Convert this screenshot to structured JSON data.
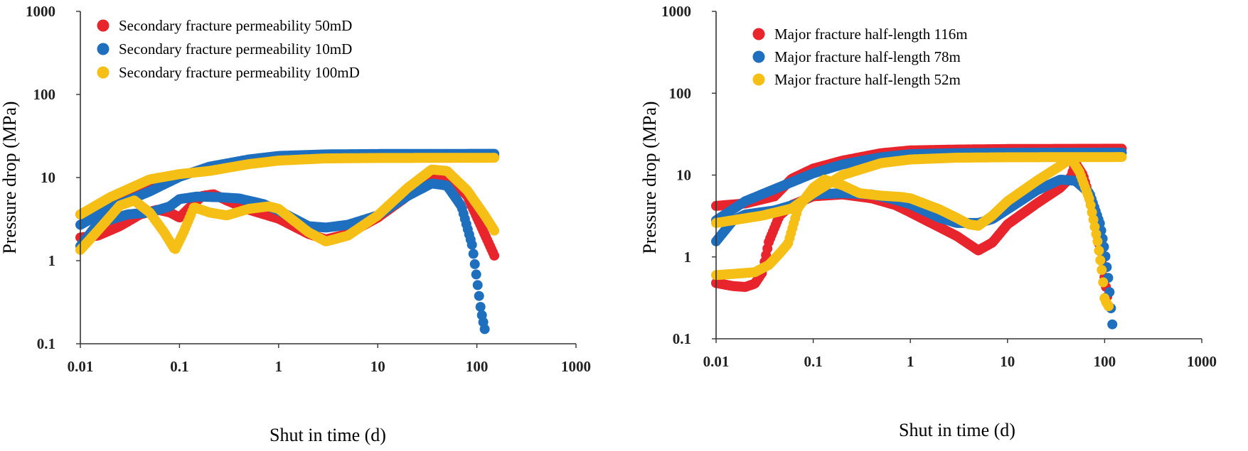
{
  "figure": {
    "description_panels": 2
  },
  "chart_data": [
    {
      "type": "scatter",
      "xscale": "log",
      "yscale": "log",
      "xlim": [
        0.01,
        1000
      ],
      "ylim": [
        0.1,
        1000
      ],
      "xlabel": "Shut in time (d)",
      "ylabel": "Pressure drop (MPa)",
      "xticks": [
        "0.01",
        "0.1",
        "1",
        "10",
        "100",
        "1000"
      ],
      "yticks": [
        "0.1",
        "1",
        "10",
        "100",
        "1000"
      ],
      "legend_position": "top-left",
      "series": [
        {
          "name": "Secondary fracture permeability 50mD",
          "color": "#e8242c",
          "rising_curve": [
            [
              0.01,
              3.6
            ],
            [
              0.02,
              5.0
            ],
            [
              0.05,
              8.0
            ],
            [
              0.1,
              10.5
            ],
            [
              0.2,
              13.0
            ],
            [
              0.5,
              15.5
            ],
            [
              1,
              17.2
            ],
            [
              3,
              18.0
            ],
            [
              10,
              18.2
            ],
            [
              150,
              18.3
            ]
          ],
          "derivative_curve": [
            [
              0.01,
              1.9
            ],
            [
              0.015,
              2.0
            ],
            [
              0.025,
              2.6
            ],
            [
              0.04,
              3.6
            ],
            [
              0.06,
              4.1
            ],
            [
              0.08,
              3.8
            ],
            [
              0.1,
              3.3
            ],
            [
              0.13,
              4.5
            ],
            [
              0.17,
              6.0
            ],
            [
              0.22,
              6.3
            ],
            [
              0.3,
              5.3
            ],
            [
              0.5,
              4.1
            ],
            [
              1,
              3.2
            ],
            [
              2,
              2.1
            ],
            [
              3,
              1.8
            ],
            [
              5,
              2.1
            ],
            [
              10,
              3.3
            ],
            [
              20,
              6.0
            ],
            [
              35,
              10.5
            ],
            [
              50,
              10.5
            ],
            [
              80,
              6.0
            ],
            [
              110,
              2.6
            ],
            [
              150,
              1.15
            ]
          ]
        },
        {
          "name": "Secondary fracture permeability 10mD",
          "color": "#1f6fbf",
          "rising_curve": [
            [
              0.01,
              2.7
            ],
            [
              0.02,
              4.3
            ],
            [
              0.05,
              6.8
            ],
            [
              0.1,
              10.2
            ],
            [
              0.2,
              13.5
            ],
            [
              0.5,
              16.5
            ],
            [
              1,
              18.2
            ],
            [
              3,
              19.0
            ],
            [
              10,
              19.2
            ],
            [
              150,
              19.3
            ]
          ],
          "derivative_curve": [
            [
              0.01,
              1.5
            ],
            [
              0.015,
              2.8
            ],
            [
              0.03,
              3.6
            ],
            [
              0.05,
              3.8
            ],
            [
              0.08,
              4.5
            ],
            [
              0.1,
              5.5
            ],
            [
              0.15,
              5.9
            ],
            [
              0.25,
              5.8
            ],
            [
              0.4,
              5.6
            ],
            [
              0.7,
              4.8
            ],
            [
              1,
              4.0
            ],
            [
              2,
              2.6
            ],
            [
              3,
              2.5
            ],
            [
              5,
              2.7
            ],
            [
              10,
              3.5
            ],
            [
              20,
              6.0
            ],
            [
              35,
              8.5
            ],
            [
              50,
              8.0
            ],
            [
              70,
              4.5
            ],
            [
              90,
              1.5
            ],
            [
              100,
              0.6
            ],
            [
              110,
              0.25
            ],
            [
              120,
              0.15
            ]
          ]
        },
        {
          "name": "Secondary fracture permeability 100mD",
          "color": "#f6bf16",
          "rising_curve": [
            [
              0.01,
              3.6
            ],
            [
              0.02,
              5.8
            ],
            [
              0.05,
              9.5
            ],
            [
              0.1,
              11.0
            ],
            [
              0.2,
              12.0
            ],
            [
              0.5,
              14.5
            ],
            [
              1,
              16.0
            ],
            [
              3,
              17.0
            ],
            [
              10,
              17.2
            ],
            [
              150,
              17.3
            ]
          ],
          "derivative_curve": [
            [
              0.01,
              1.35
            ],
            [
              0.015,
              2.3
            ],
            [
              0.025,
              4.6
            ],
            [
              0.035,
              5.3
            ],
            [
              0.05,
              3.8
            ],
            [
              0.07,
              2.2
            ],
            [
              0.09,
              1.35
            ],
            [
              0.11,
              2.2
            ],
            [
              0.14,
              4.4
            ],
            [
              0.2,
              3.8
            ],
            [
              0.3,
              3.5
            ],
            [
              0.5,
              4.2
            ],
            [
              0.8,
              4.5
            ],
            [
              1,
              4.2
            ],
            [
              2,
              2.2
            ],
            [
              3,
              1.7
            ],
            [
              5,
              2.0
            ],
            [
              10,
              3.5
            ],
            [
              20,
              7.5
            ],
            [
              35,
              12.5
            ],
            [
              50,
              12.0
            ],
            [
              80,
              7.0
            ],
            [
              120,
              3.5
            ],
            [
              150,
              2.3
            ]
          ]
        }
      ]
    },
    {
      "type": "scatter",
      "xscale": "log",
      "yscale": "log",
      "xlim": [
        0.01,
        1000
      ],
      "ylim": [
        0.1,
        1000
      ],
      "xlabel": "Shut in time (d)",
      "ylabel": "Pressure drop (MPa)",
      "xticks": [
        "0.01",
        "0.1",
        "1",
        "10",
        "100",
        "1000"
      ],
      "yticks": [
        "0.1",
        "1",
        "10",
        "100",
        "1000"
      ],
      "legend_position": "top-left",
      "series": [
        {
          "name": "Major fracture half-length 116m",
          "color": "#e8242c",
          "rising_curve": [
            [
              0.01,
              4.2
            ],
            [
              0.02,
              4.5
            ],
            [
              0.04,
              5.5
            ],
            [
              0.06,
              9.0
            ],
            [
              0.1,
              12.0
            ],
            [
              0.2,
              15.0
            ],
            [
              0.5,
              18.5
            ],
            [
              1,
              20.0
            ],
            [
              3,
              20.5
            ],
            [
              10,
              20.8
            ],
            [
              150,
              21.0
            ]
          ],
          "derivative_curve": [
            [
              0.01,
              0.48
            ],
            [
              0.015,
              0.44
            ],
            [
              0.02,
              0.43
            ],
            [
              0.025,
              0.47
            ],
            [
              0.03,
              0.65
            ],
            [
              0.035,
              1.55
            ],
            [
              0.045,
              3.2
            ],
            [
              0.06,
              4.3
            ],
            [
              0.1,
              5.5
            ],
            [
              0.2,
              5.8
            ],
            [
              0.4,
              5.2
            ],
            [
              0.7,
              4.3
            ],
            [
              1,
              3.5
            ],
            [
              2,
              2.3
            ],
            [
              3,
              1.8
            ],
            [
              5,
              1.2
            ],
            [
              7,
              1.5
            ],
            [
              10,
              2.5
            ],
            [
              20,
              4.5
            ],
            [
              35,
              7.0
            ],
            [
              45,
              9.5
            ],
            [
              50,
              14.0
            ],
            [
              60,
              10.0
            ],
            [
              75,
              4.0
            ],
            [
              90,
              1.2
            ],
            [
              100,
              0.55
            ],
            [
              110,
              0.25
            ]
          ]
        },
        {
          "name": "Major fracture half-length 78m",
          "color": "#1f6fbf",
          "rising_curve": [
            [
              0.01,
              2.8
            ],
            [
              0.02,
              4.8
            ],
            [
              0.05,
              7.5
            ],
            [
              0.1,
              10.5
            ],
            [
              0.2,
              13.5
            ],
            [
              0.5,
              16.5
            ],
            [
              1,
              18.0
            ],
            [
              3,
              18.5
            ],
            [
              10,
              18.7
            ],
            [
              150,
              18.8
            ]
          ],
          "derivative_curve": [
            [
              0.01,
              1.55
            ],
            [
              0.015,
              2.8
            ],
            [
              0.02,
              3.3
            ],
            [
              0.04,
              3.7
            ],
            [
              0.07,
              4.5
            ],
            [
              0.1,
              5.8
            ],
            [
              0.2,
              6.0
            ],
            [
              0.4,
              5.8
            ],
            [
              0.7,
              5.0
            ],
            [
              1,
              4.4
            ],
            [
              2,
              3.0
            ],
            [
              3,
              2.6
            ],
            [
              5,
              2.6
            ],
            [
              7,
              2.9
            ],
            [
              10,
              3.8
            ],
            [
              20,
              6.5
            ],
            [
              35,
              8.8
            ],
            [
              50,
              8.5
            ],
            [
              70,
              6.0
            ],
            [
              90,
              2.5
            ],
            [
              100,
              1.2
            ],
            [
              110,
              0.5
            ],
            [
              120,
              0.15
            ]
          ]
        },
        {
          "name": "Major fracture half-length 52m",
          "color": "#f6bf16",
          "rising_curve": [
            [
              0.01,
              2.6
            ],
            [
              0.03,
              3.2
            ],
            [
              0.06,
              3.9
            ],
            [
              0.1,
              6.0
            ],
            [
              0.2,
              10.0
            ],
            [
              0.5,
              14.0
            ],
            [
              1,
              15.5
            ],
            [
              3,
              16.3
            ],
            [
              10,
              16.5
            ],
            [
              150,
              16.6
            ]
          ],
          "derivative_curve": [
            [
              0.01,
              0.6
            ],
            [
              0.015,
              0.62
            ],
            [
              0.025,
              0.65
            ],
            [
              0.035,
              0.8
            ],
            [
              0.045,
              1.1
            ],
            [
              0.055,
              1.45
            ],
            [
              0.07,
              4.0
            ],
            [
              0.1,
              7.0
            ],
            [
              0.13,
              8.8
            ],
            [
              0.2,
              7.5
            ],
            [
              0.3,
              6.0
            ],
            [
              0.5,
              5.6
            ],
            [
              0.8,
              5.4
            ],
            [
              1,
              5.2
            ],
            [
              2,
              3.8
            ],
            [
              3,
              3.0
            ],
            [
              4,
              2.5
            ],
            [
              5,
              2.4
            ],
            [
              7,
              3.2
            ],
            [
              10,
              4.8
            ],
            [
              20,
              8.5
            ],
            [
              35,
              13.0
            ],
            [
              45,
              16.0
            ],
            [
              55,
              11.0
            ],
            [
              70,
              5.0
            ],
            [
              85,
              1.5
            ],
            [
              95,
              0.6
            ],
            [
              100,
              0.3
            ],
            [
              110,
              0.25
            ]
          ]
        }
      ]
    }
  ]
}
